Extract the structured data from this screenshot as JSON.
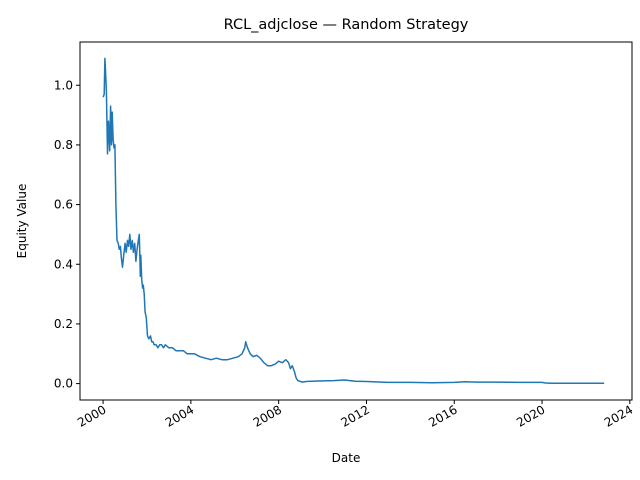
{
  "chart_data": {
    "type": "line",
    "title": "RCL_adjclose — Random Strategy",
    "xlabel": "Date",
    "ylabel": "Equity Value",
    "xlim": [
      "1998-12-13",
      "2024-02-06"
    ],
    "ylim": [
      -0.055,
      1.145
    ],
    "x_ticks": [
      "2000",
      "2004",
      "2008",
      "2012",
      "2016",
      "2020",
      "2024"
    ],
    "y_ticks": [
      "0.0",
      "0.2",
      "0.4",
      "0.6",
      "0.8",
      "1.0"
    ],
    "grid": false,
    "colors": {
      "line": "#1f77b4",
      "axes": "#000000",
      "background": "#ffffff"
    },
    "series": [
      {
        "x": [
          "2000-01-03",
          "2000-01-20",
          "2000-02-01",
          "2000-02-10",
          "2000-02-25",
          "2000-03-15",
          "2000-04-01",
          "2000-04-20",
          "2000-05-05",
          "2000-05-20",
          "2000-06-01",
          "2000-06-15",
          "2000-07-01",
          "2000-07-15",
          "2000-08-01",
          "2000-08-20",
          "2000-09-10",
          "2000-09-25",
          "2000-10-15",
          "2000-11-01",
          "2000-11-20",
          "2000-12-10",
          "2001-01-01",
          "2001-01-20",
          "2001-02-10",
          "2001-03-01",
          "2001-03-20",
          "2001-04-10",
          "2001-05-01",
          "2001-05-20",
          "2001-06-10",
          "2001-07-01",
          "2001-07-20",
          "2001-08-10",
          "2001-08-25",
          "2001-09-05",
          "2001-09-12",
          "2001-09-20",
          "2001-10-05",
          "2001-10-20",
          "2001-11-01",
          "2001-11-15",
          "2001-12-01",
          "2001-12-20",
          "2002-01-10",
          "2002-02-01",
          "2002-03-01",
          "2002-03-20",
          "2002-04-10",
          "2002-05-01",
          "2002-06-01",
          "2002-07-01",
          "2002-08-01",
          "2002-09-01",
          "2002-10-01",
          "2002-11-01",
          "2003-01-01",
          "2003-03-01",
          "2003-05-01",
          "2003-07-01",
          "2003-09-01",
          "2003-11-01",
          "2004-01-01",
          "2004-03-01",
          "2004-06-01",
          "2004-09-01",
          "2004-12-01",
          "2005-03-01",
          "2005-06-01",
          "2005-09-01",
          "2005-12-01",
          "2006-03-01",
          "2006-05-01",
          "2006-06-15",
          "2006-07-01",
          "2006-08-01",
          "2006-09-15",
          "2006-11-01",
          "2007-01-01",
          "2007-03-01",
          "2007-05-01",
          "2007-07-01",
          "2007-09-01",
          "2007-11-01",
          "2008-01-01",
          "2008-03-01",
          "2008-05-01",
          "2008-06-15",
          "2008-07-15",
          "2008-08-15",
          "2008-09-20",
          "2008-10-15",
          "2008-11-15",
          "2008-12-15",
          "2009-02-01",
          "2009-04-01",
          "2009-07-01",
          "2010-01-01",
          "2010-07-01",
          "2011-01-01",
          "2011-07-01",
          "2012-01-01",
          "2013-01-01",
          "2014-01-01",
          "2015-01-01",
          "2016-01-01",
          "2016-07-01",
          "2017-01-01",
          "2018-01-01",
          "2019-01-01",
          "2020-01-01",
          "2020-03-01",
          "2020-06-01",
          "2021-01-01",
          "2022-01-01",
          "2022-11-01"
        ],
        "y": [
          0.96,
          0.97,
          1.09,
          1.05,
          0.98,
          0.77,
          0.88,
          0.78,
          0.93,
          0.8,
          0.91,
          0.82,
          0.79,
          0.8,
          0.6,
          0.48,
          0.47,
          0.45,
          0.46,
          0.42,
          0.39,
          0.43,
          0.47,
          0.44,
          0.48,
          0.46,
          0.5,
          0.45,
          0.48,
          0.44,
          0.47,
          0.41,
          0.45,
          0.48,
          0.5,
          0.42,
          0.36,
          0.43,
          0.35,
          0.32,
          0.33,
          0.3,
          0.24,
          0.22,
          0.16,
          0.15,
          0.16,
          0.14,
          0.14,
          0.13,
          0.13,
          0.12,
          0.13,
          0.13,
          0.12,
          0.13,
          0.12,
          0.12,
          0.11,
          0.11,
          0.11,
          0.1,
          0.1,
          0.1,
          0.09,
          0.085,
          0.08,
          0.085,
          0.08,
          0.08,
          0.085,
          0.09,
          0.1,
          0.12,
          0.14,
          0.12,
          0.1,
          0.09,
          0.095,
          0.085,
          0.07,
          0.06,
          0.06,
          0.065,
          0.075,
          0.07,
          0.08,
          0.07,
          0.05,
          0.06,
          0.04,
          0.02,
          0.01,
          0.008,
          0.005,
          0.007,
          0.008,
          0.009,
          0.01,
          0.012,
          0.008,
          0.007,
          0.004,
          0.004,
          0.003,
          0.004,
          0.006,
          0.005,
          0.005,
          0.004,
          0.004,
          0.002,
          0.001,
          0.001,
          0.001,
          0.001
        ]
      }
    ]
  }
}
